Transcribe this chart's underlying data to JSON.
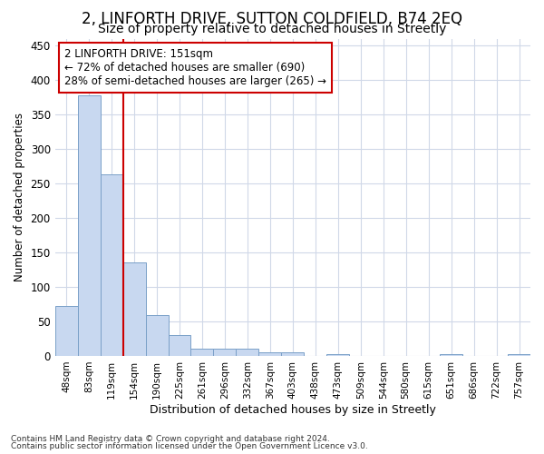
{
  "title": "2, LINFORTH DRIVE, SUTTON COLDFIELD, B74 2EQ",
  "subtitle": "Size of property relative to detached houses in Streetly",
  "xlabel": "Distribution of detached houses by size in Streetly",
  "ylabel": "Number of detached properties",
  "bar_labels": [
    "48sqm",
    "83sqm",
    "119sqm",
    "154sqm",
    "190sqm",
    "225sqm",
    "261sqm",
    "296sqm",
    "332sqm",
    "367sqm",
    "403sqm",
    "438sqm",
    "473sqm",
    "509sqm",
    "544sqm",
    "580sqm",
    "615sqm",
    "651sqm",
    "686sqm",
    "722sqm",
    "757sqm"
  ],
  "bar_heights": [
    72,
    378,
    263,
    136,
    59,
    30,
    10,
    10,
    10,
    5,
    5,
    0,
    3,
    0,
    0,
    0,
    0,
    3,
    0,
    0,
    2
  ],
  "bar_color": "#c8d8f0",
  "bar_edge_color": "#7aa0c8",
  "vline_x": 3.0,
  "vline_color": "#cc0000",
  "annotation_text": "2 LINFORTH DRIVE: 151sqm\n← 72% of detached houses are smaller (690)\n28% of semi-detached houses are larger (265) →",
  "annotation_box_color": "#ffffff",
  "annotation_box_edge": "#cc0000",
  "ylim": [
    0,
    460
  ],
  "yticks": [
    0,
    50,
    100,
    150,
    200,
    250,
    300,
    350,
    400,
    450
  ],
  "footer1": "Contains HM Land Registry data © Crown copyright and database right 2024.",
  "footer2": "Contains public sector information licensed under the Open Government Licence v3.0.",
  "background_color": "#ffffff",
  "grid_color": "#d0d8e8",
  "title_fontsize": 12,
  "subtitle_fontsize": 10
}
